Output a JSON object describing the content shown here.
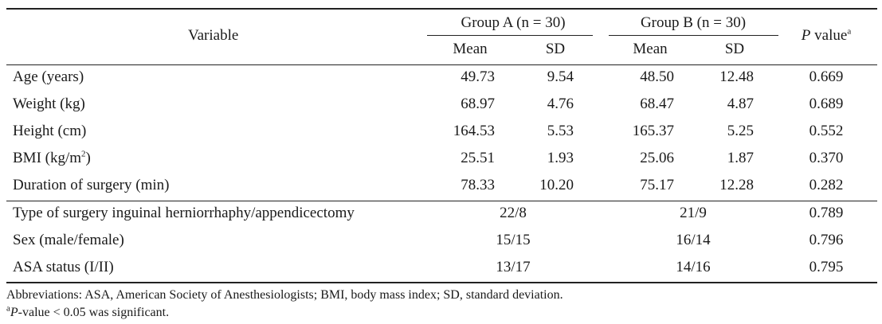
{
  "header": {
    "variable": "Variable",
    "group_a": "Group A (n = 30)",
    "group_b": "Group B (n = 30)",
    "p_label": "P",
    "p_rest": " value",
    "p_sup": "a",
    "mean": "Mean",
    "sd": "SD"
  },
  "rows": [
    {
      "label": "Age (years)",
      "a_mean": "49.73",
      "a_sd": "9.54",
      "b_mean": "48.50",
      "b_sd": "12.48",
      "p": "0.669"
    },
    {
      "label": "Weight (kg)",
      "a_mean": "68.97",
      "a_sd": "4.76",
      "b_mean": "68.47",
      "b_sd": "4.87",
      "p": "0.689"
    },
    {
      "label": "Height (cm)",
      "a_mean": "164.53",
      "a_sd": "5.53",
      "b_mean": "165.37",
      "b_sd": "5.25",
      "p": "0.552"
    },
    {
      "label": "BMI (kg/m",
      "label_sup": "2",
      "label_end": ")",
      "a_mean": "25.51",
      "a_sd": "1.93",
      "b_mean": "25.06",
      "b_sd": "1.87",
      "p": "0.370"
    },
    {
      "label": "Duration of surgery (min)",
      "a_mean": "78.33",
      "a_sd": "10.20",
      "b_mean": "75.17",
      "b_sd": "12.28",
      "p": "0.282"
    }
  ],
  "count_rows": [
    {
      "label": "Type of surgery inguinal herniorrhaphy/appendicectomy",
      "a": "22/8",
      "b": "21/9",
      "p": "0.789"
    },
    {
      "label": "Sex (male/female)",
      "a": "15/15",
      "b": "16/14",
      "p": "0.796"
    },
    {
      "label": "ASA status (I/II)",
      "a": "13/17",
      "b": "14/16",
      "p": "0.795"
    }
  ],
  "footnotes": {
    "abbrev": "Abbreviations: ASA, American Society of Anesthesiologists; BMI, body mass index; SD, standard deviation.",
    "sig_sup": "a",
    "sig_italic": "P",
    "sig_text": "-value < 0.05 was significant."
  }
}
